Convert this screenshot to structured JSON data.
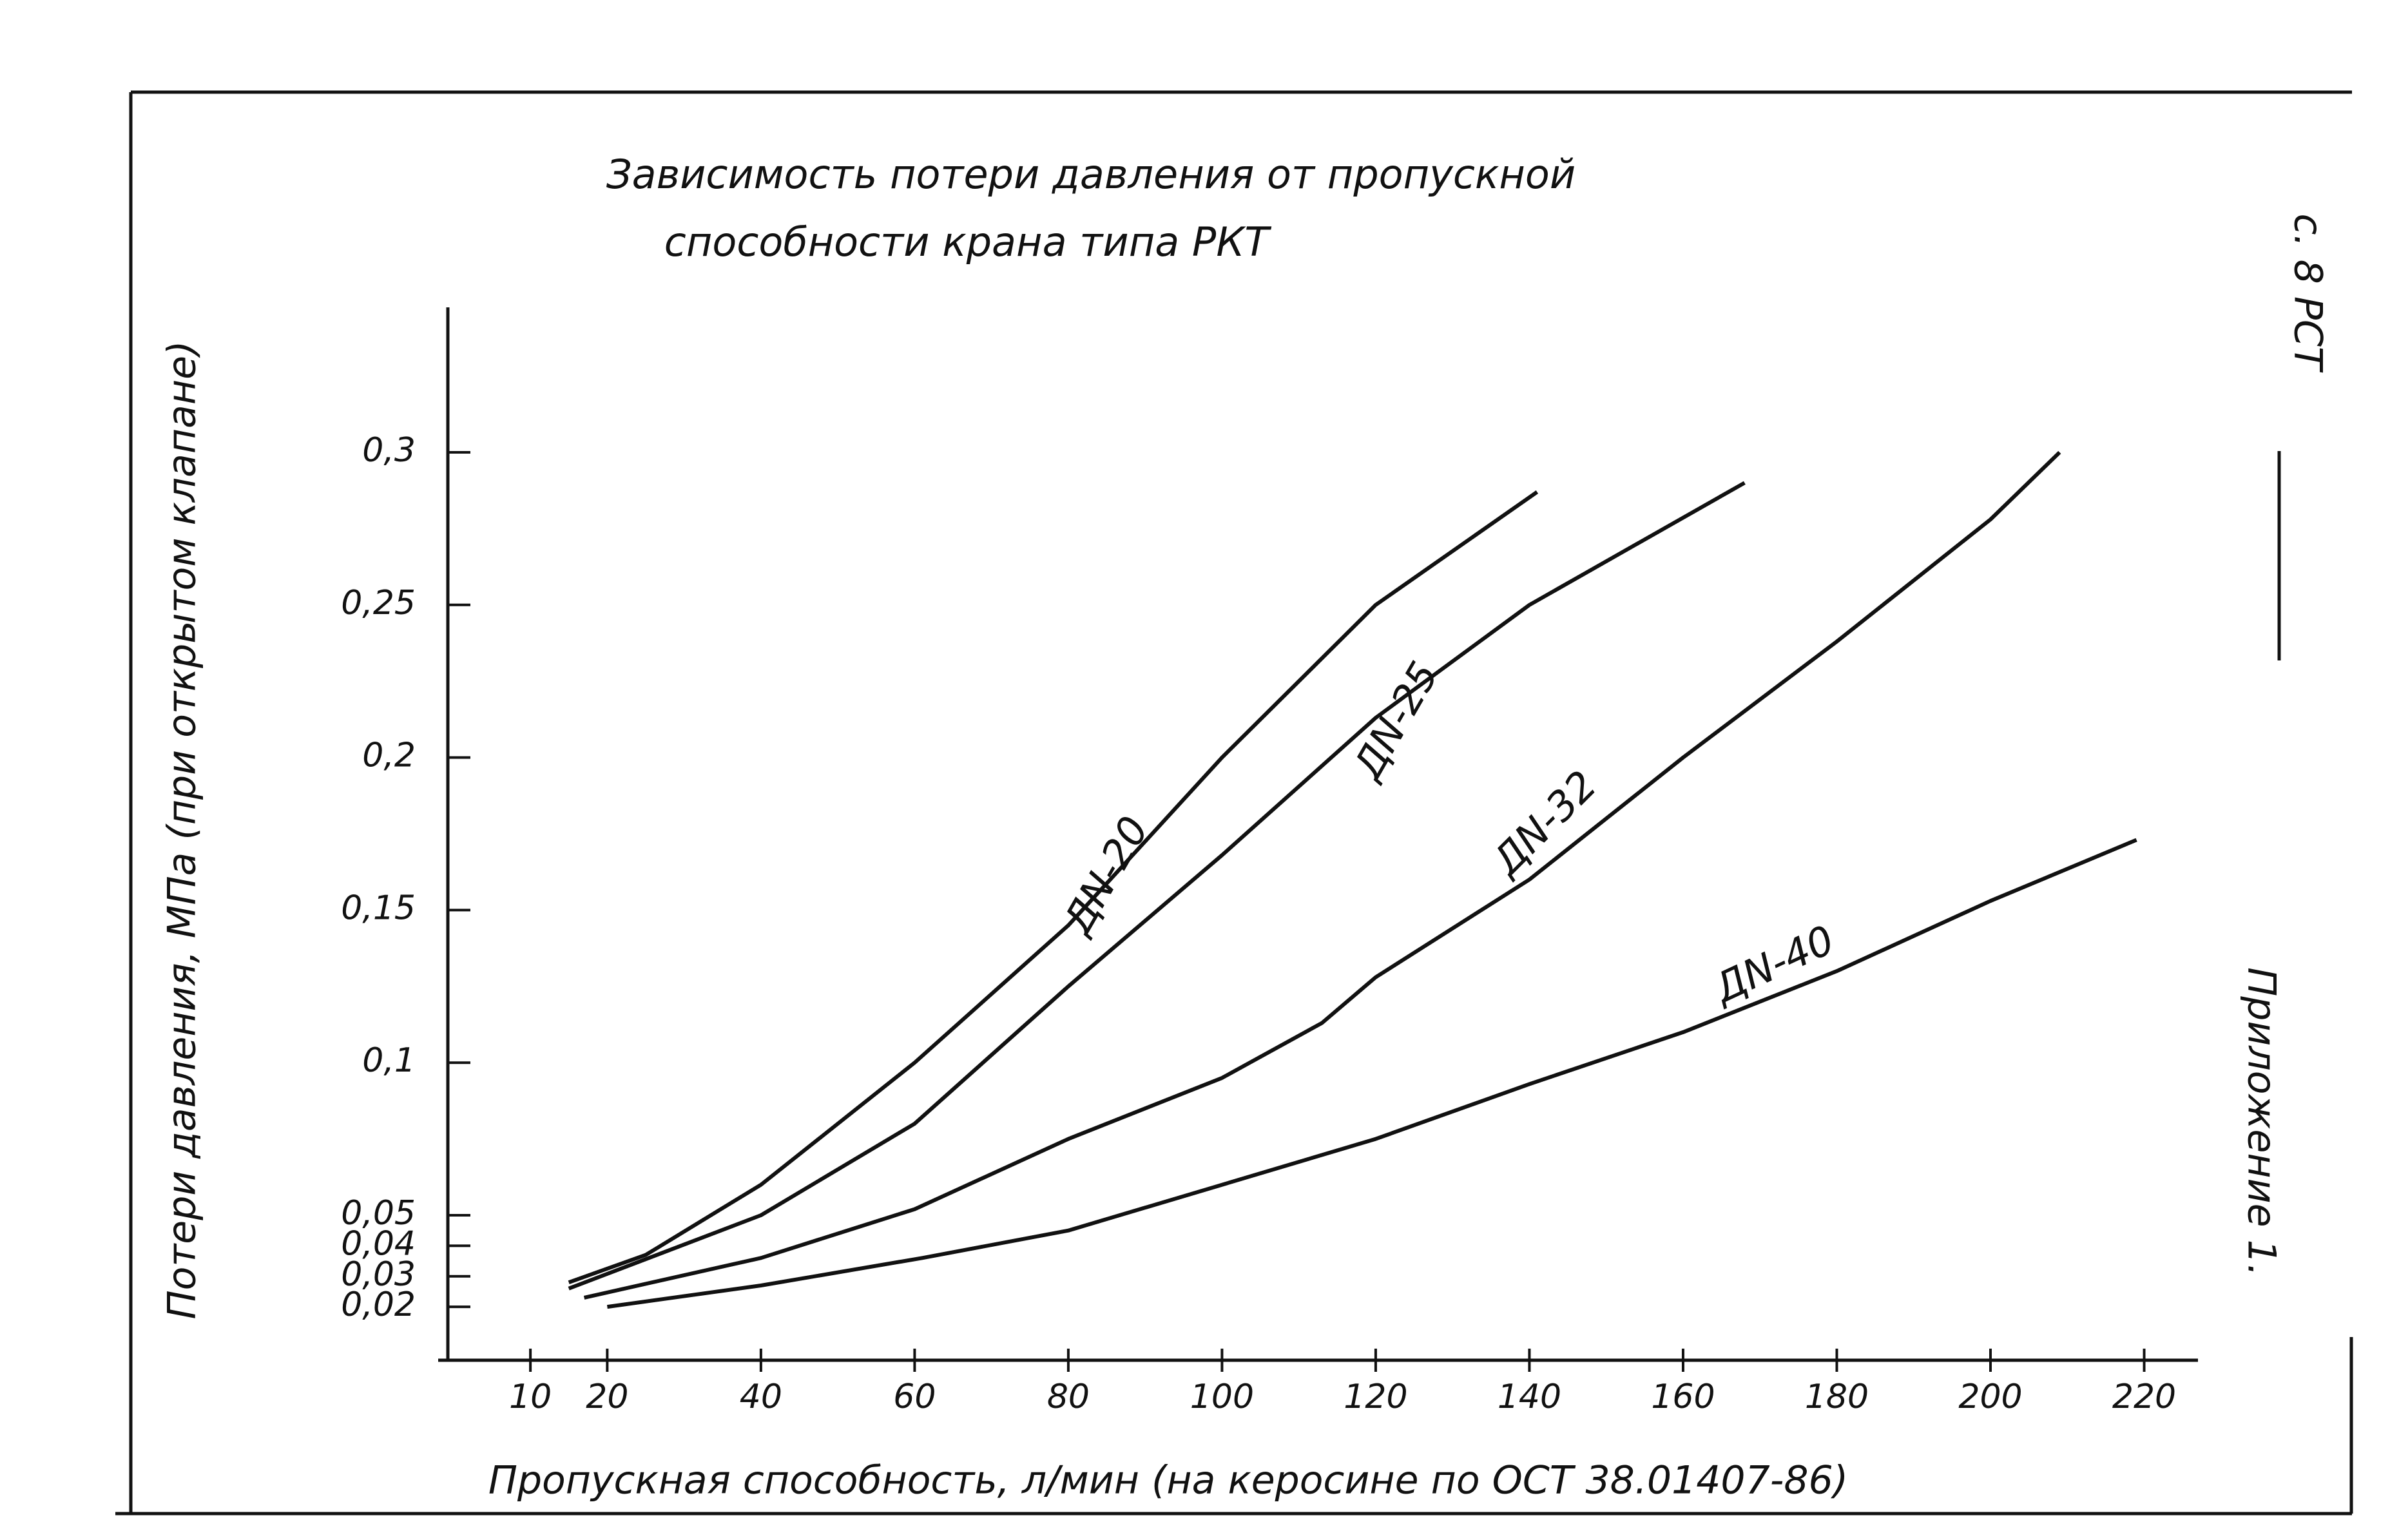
{
  "chart_data": {
    "type": "line",
    "title": [
      "Зависимость   потери давления от пропускной",
      "способности   крана   типа  РКТ"
    ],
    "x_label": "Пропускная способность, л/мин (на керосине по ОСТ 38.01407-86)",
    "y_label": "Потери давления, МПа (при открытом клапане)",
    "xlim": [
      -2,
      227
    ],
    "ylim": [
      0.0025,
      0.3475
    ],
    "xticks": [
      10,
      20,
      40,
      60,
      80,
      100,
      120,
      140,
      160,
      180,
      200,
      220
    ],
    "yticks": [
      {
        "value": 0.02,
        "label": "0,02"
      },
      {
        "value": 0.03,
        "label": "0,03"
      },
      {
        "value": 0.04,
        "label": "0,04"
      },
      {
        "value": 0.05,
        "label": "0,05"
      },
      {
        "value": 0.1,
        "label": "0,1"
      },
      {
        "value": 0.15,
        "label": "0,15"
      },
      {
        "value": 0.2,
        "label": "0,2"
      },
      {
        "value": 0.25,
        "label": "0,25"
      },
      {
        "value": 0.3,
        "label": "0,3"
      }
    ],
    "grid": false,
    "series": [
      {
        "name": "ДN-20",
        "color": "#111111",
        "x": [
          15,
          25,
          40,
          60,
          80,
          100,
          120,
          141
        ],
        "values": [
          0.028,
          0.037,
          0.06,
          0.1,
          0.145,
          0.2,
          0.25,
          0.287
        ]
      },
      {
        "name": "ДN-25",
        "color": "#111111",
        "x": [
          15,
          40,
          60,
          80,
          100,
          120,
          140,
          168
        ],
        "values": [
          0.026,
          0.05,
          0.08,
          0.125,
          0.168,
          0.213,
          0.25,
          0.29
        ]
      },
      {
        "name": "ДN-32",
        "color": "#111111",
        "x": [
          17,
          40,
          60,
          80,
          100,
          113,
          120,
          140,
          160,
          180,
          200,
          209
        ],
        "values": [
          0.023,
          0.036,
          0.052,
          0.075,
          0.095,
          0.113,
          0.128,
          0.16,
          0.2,
          0.238,
          0.278,
          0.3
        ]
      },
      {
        "name": "ДN-40",
        "color": "#111111",
        "x": [
          20,
          40,
          61,
          80,
          100,
          120,
          140,
          160,
          180,
          200,
          219
        ],
        "values": [
          0.02,
          0.027,
          0.036,
          0.045,
          0.06,
          0.075,
          0.093,
          0.11,
          0.13,
          0.153,
          0.173
        ]
      }
    ]
  },
  "page": {
    "stamp": "с. 8 РСТ",
    "appendix": "Приложение 1."
  }
}
